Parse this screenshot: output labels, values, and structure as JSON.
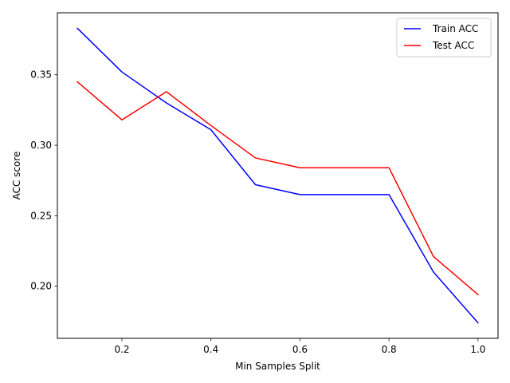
{
  "chart_data": {
    "type": "line",
    "title": "",
    "xlabel": "Min Samples Split",
    "ylabel": "ACC score",
    "x": [
      0.1,
      0.2,
      0.3,
      0.4,
      0.5,
      0.6,
      0.7,
      0.8,
      0.9,
      1.0
    ],
    "xlim": [
      0.055,
      1.045
    ],
    "ylim": [
      0.163,
      0.394
    ],
    "xticks": [
      0.2,
      0.4,
      0.6,
      0.8,
      1.0
    ],
    "xtick_labels": [
      "0.2",
      "0.4",
      "0.6",
      "0.8",
      "1.0"
    ],
    "yticks": [
      0.2,
      0.25,
      0.3,
      0.35
    ],
    "ytick_labels": [
      "0.20",
      "0.25",
      "0.30",
      "0.35"
    ],
    "grid": false,
    "legend_position": "top-right",
    "series": [
      {
        "name": "Train ACC",
        "color": "#0000ff",
        "values": [
          0.383,
          0.352,
          0.33,
          0.311,
          0.272,
          0.265,
          0.265,
          0.265,
          0.21,
          0.174
        ]
      },
      {
        "name": "Test ACC",
        "color": "#ff0000",
        "values": [
          0.345,
          0.318,
          0.338,
          0.314,
          0.291,
          0.284,
          0.284,
          0.284,
          0.221,
          0.194
        ]
      }
    ]
  }
}
